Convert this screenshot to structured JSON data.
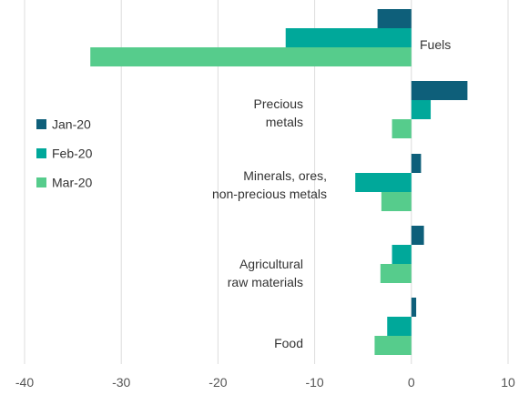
{
  "chart_data": {
    "type": "bar",
    "orientation": "horizontal",
    "categories": [
      [
        "Fuels"
      ],
      [
        "Precious",
        "metals"
      ],
      [
        "Minerals, ores,",
        "non-precious metals"
      ],
      [
        "Agricultural",
        "raw materials"
      ],
      [
        "Food"
      ]
    ],
    "series": [
      {
        "name": "Jan-20",
        "color": "#0e5f7a",
        "values": [
          -3.5,
          5.8,
          1.0,
          1.3,
          0.5
        ]
      },
      {
        "name": "Feb-20",
        "color": "#00a89a",
        "values": [
          -13.0,
          2.0,
          -5.8,
          -2.0,
          -2.5
        ]
      },
      {
        "name": "Mar-20",
        "color": "#56cc8c",
        "values": [
          -33.2,
          -2.0,
          -3.1,
          -3.2,
          -3.8
        ]
      }
    ],
    "xlim": [
      -40,
      10
    ],
    "xticks": [
      -40,
      -30,
      -20,
      -10,
      0,
      10
    ],
    "grid": "vertical",
    "legend_position": "left-middle"
  }
}
